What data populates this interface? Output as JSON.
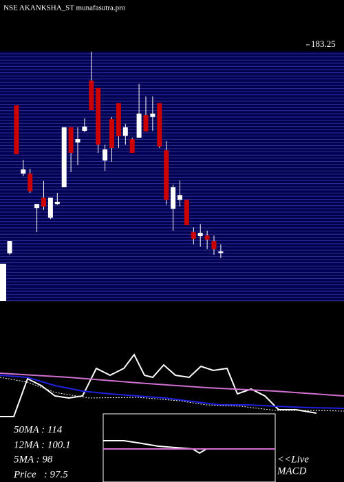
{
  "chart_data": {
    "type": "candlestick",
    "title": "NSE AKANKSHA_ST munafasutra.pro",
    "ylim": [
      76.96,
      183.25
    ],
    "yticks": [
      183.25
    ],
    "up_color": "#ffffff",
    "down_color": "#cc0000",
    "open": [
      96.7,
      158.1,
      129.8,
      129.8,
      115.5,
      119.8,
      111.5,
      117.2,
      124.1,
      149.0,
      142.7,
      147.5,
      168.4,
      165.3,
      135.2,
      152.4,
      159.0,
      145.5,
      144.1,
      144.7,
      154.1,
      153.3,
      159.0,
      139.5,
      115.2,
      118.9,
      118.9,
      105.5,
      103.8,
      104.1,
      101.8,
      96.8
    ],
    "high": [
      101.8,
      158.1,
      135.5,
      131.8,
      117.2,
      126.7,
      119.8,
      121.8,
      149.0,
      149.0,
      149.0,
      152.7,
      180.4,
      165.3,
      141.8,
      153.3,
      159.0,
      150.4,
      144.7,
      167.0,
      161.8,
      161.8,
      159.0,
      143.3,
      125.2,
      126.9,
      118.9,
      107.5,
      108.9,
      106.1,
      104.1,
      100.4
    ],
    "low": [
      96.1,
      137.8,
      128.7,
      121.8,
      105.5,
      114.7,
      110.9,
      116.7,
      124.1,
      130.4,
      133.3,
      147.0,
      156.1,
      138.4,
      130.9,
      134.7,
      140.4,
      141.8,
      138.4,
      144.7,
      147.3,
      147.5,
      140.4,
      116.9,
      106.1,
      116.1,
      108.4,
      100.4,
      99.5,
      98.4,
      96.1,
      94.7
    ],
    "close": [
      101.8,
      137.8,
      131.5,
      122.4,
      117.2,
      116.1,
      119.8,
      118.1,
      149.0,
      138.4,
      144.1,
      149.3,
      156.1,
      141.8,
      139.8,
      140.4,
      145.3,
      149.0,
      138.4,
      154.7,
      147.3,
      154.7,
      141.0,
      118.9,
      124.1,
      120.9,
      108.4,
      102.7,
      105.2,
      102.4,
      98.4,
      97.5
    ]
  },
  "indicators": [
    "50MA : 114",
    "12MA : 100.1",
    "5MA : 98",
    "Price   : 97.5"
  ],
  "macd_label": [
    "<<Live",
    "MACD"
  ]
}
